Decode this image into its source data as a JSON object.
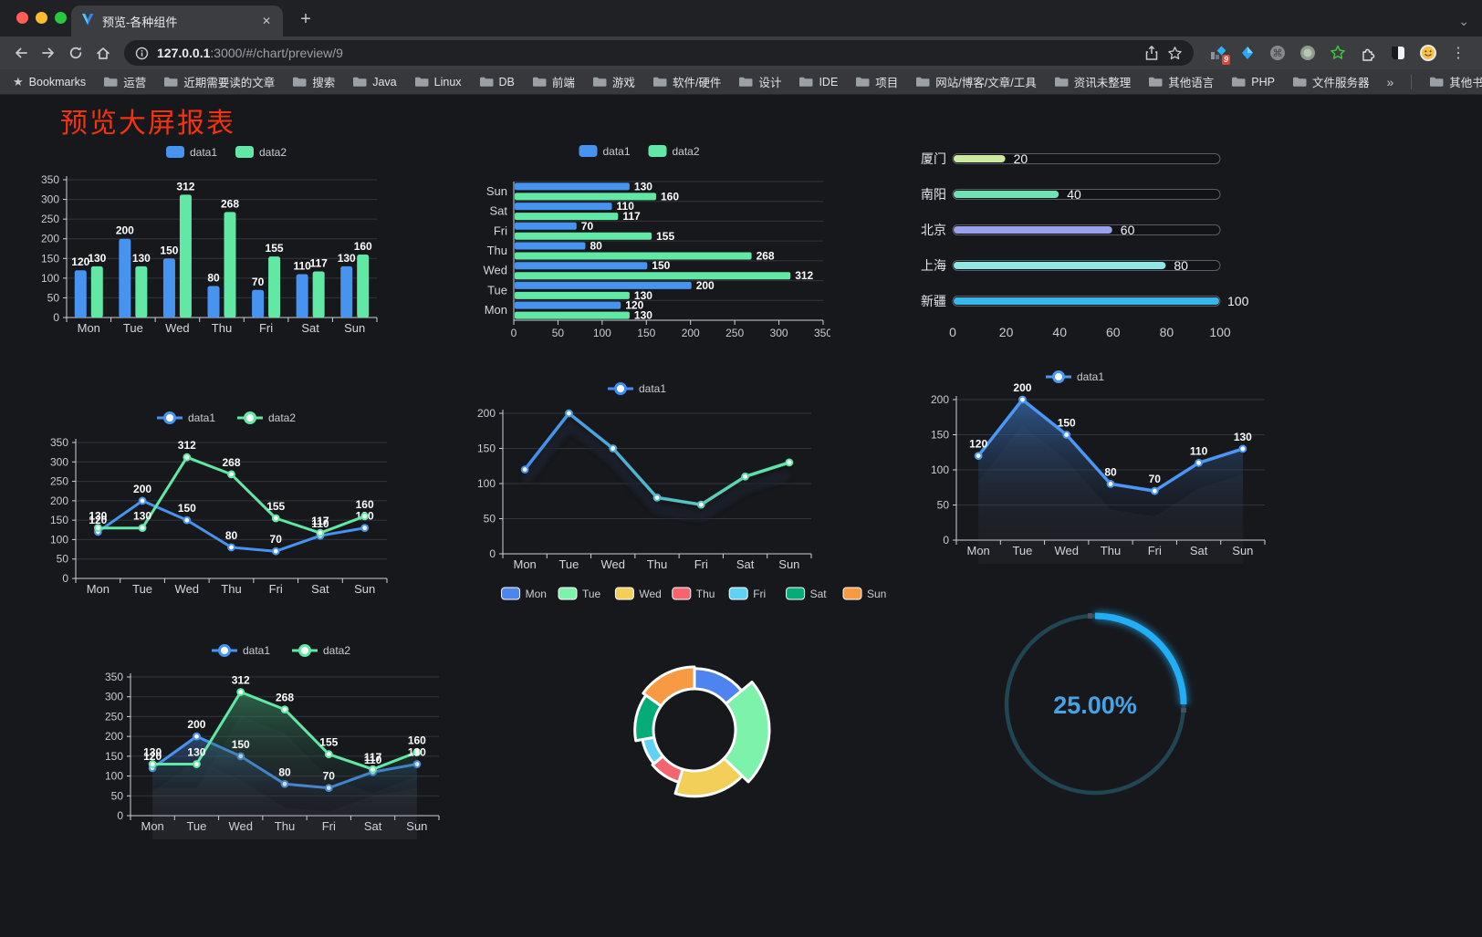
{
  "browser": {
    "tab_title": "预览-各种组件",
    "url_host": "127.0.0.1",
    "url_rest": ":3000/#/chart/preview/9",
    "ext_badge": "9",
    "bookmarks_label": "Bookmarks",
    "bookmarks": [
      "运营",
      "近期需要读的文章",
      "搜索",
      "Java",
      "Linux",
      "DB",
      "前端",
      "游戏",
      "软件/硬件",
      "设计",
      "IDE",
      "项目",
      "网站/博客/文章/工具",
      "资讯未整理",
      "其他语言",
      "PHP",
      "文件服务器"
    ],
    "other_bookmarks": "其他书签",
    "icons": {
      "close_glyph": "✕",
      "new_tab_glyph": "+",
      "chevron_glyph": "⌄",
      "overflow_glyph": "»",
      "menu_glyph": "⋮",
      "cmd_glyph": "⌘"
    }
  },
  "page": {
    "title": "预览大屏报表"
  },
  "palette": {
    "blue": "#4793f0",
    "green": "#62e8a5",
    "title_red": "#f3330f",
    "gauge_blue": "#21aef5",
    "gauge_track": "#1f4652",
    "gauge_text": "#46a3e8"
  },
  "chart_data": [
    {
      "id": "grouped-bar",
      "type": "bar",
      "categories": [
        "Mon",
        "Tue",
        "Wed",
        "Thu",
        "Fri",
        "Sat",
        "Sun"
      ],
      "series": [
        {
          "name": "data1",
          "color": "#4793f0",
          "values": [
            120,
            200,
            150,
            80,
            70,
            110,
            130
          ]
        },
        {
          "name": "data2",
          "color": "#62e8a5",
          "values": [
            130,
            130,
            312,
            268,
            155,
            117,
            160
          ]
        }
      ],
      "ylim": [
        0,
        350
      ],
      "ytick_step": 50,
      "legend_position": "top",
      "grid": true
    },
    {
      "id": "horizontal-bar",
      "type": "hbar",
      "categories": [
        "Mon",
        "Tue",
        "Wed",
        "Thu",
        "Fri",
        "Sat",
        "Sun"
      ],
      "series": [
        {
          "name": "data1",
          "color": "#4793f0",
          "values": [
            120,
            200,
            150,
            80,
            70,
            110,
            130
          ]
        },
        {
          "name": "data2",
          "color": "#62e8a5",
          "values": [
            130,
            130,
            312,
            268,
            155,
            117,
            160
          ]
        }
      ],
      "xlim": [
        0,
        350
      ],
      "xtick_step": 50,
      "legend_position": "top",
      "grid": true
    },
    {
      "id": "progress-bars",
      "type": "progress",
      "max": 100,
      "ticks": [
        0,
        20,
        40,
        60,
        80,
        100
      ],
      "items": [
        {
          "label": "厦门",
          "value": 20,
          "color": "#cdeaa1"
        },
        {
          "label": "南阳",
          "value": 40,
          "color": "#6ce3b3"
        },
        {
          "label": "北京",
          "value": 60,
          "color": "#98a2ec"
        },
        {
          "label": "上海",
          "value": 80,
          "color": "#8fe7e3"
        },
        {
          "label": "新疆",
          "value": 100,
          "color": "#38b6ea"
        }
      ]
    },
    {
      "id": "line-two-series",
      "type": "line",
      "categories": [
        "Mon",
        "Tue",
        "Wed",
        "Thu",
        "Fri",
        "Sat",
        "Sun"
      ],
      "series": [
        {
          "name": "data1",
          "color": "#4793f0",
          "values": [
            120,
            200,
            150,
            80,
            70,
            110,
            130
          ]
        },
        {
          "name": "data2",
          "color": "#62e8a5",
          "values": [
            130,
            130,
            312,
            268,
            155,
            117,
            160
          ]
        }
      ],
      "ylim": [
        0,
        350
      ],
      "ytick_step": 50,
      "legend_position": "top",
      "labels": true
    },
    {
      "id": "gradient-line",
      "type": "line-gradient",
      "categories": [
        "Mon",
        "Tue",
        "Wed",
        "Thu",
        "Fri",
        "Sat",
        "Sun"
      ],
      "series": [
        {
          "name": "data1",
          "gradient": [
            "#3f8df2",
            "#5fe8a2"
          ],
          "values": [
            120,
            200,
            150,
            80,
            70,
            110,
            130
          ]
        }
      ],
      "ylim": [
        0,
        200
      ],
      "ytick_step": 50,
      "legend_position": "top",
      "labels": false
    },
    {
      "id": "blue-area",
      "type": "area",
      "categories": [
        "Mon",
        "Tue",
        "Wed",
        "Thu",
        "Fri",
        "Sat",
        "Sun"
      ],
      "series": [
        {
          "name": "data1",
          "color": "#4a97f5",
          "values": [
            120,
            200,
            150,
            80,
            70,
            110,
            130
          ]
        }
      ],
      "ylim": [
        0,
        200
      ],
      "ytick_step": 50,
      "legend_position": "top",
      "labels": true
    },
    {
      "id": "line-area-two-series",
      "type": "line-area",
      "categories": [
        "Mon",
        "Tue",
        "Wed",
        "Thu",
        "Fri",
        "Sat",
        "Sun"
      ],
      "series": [
        {
          "name": "data1",
          "color": "#4793f0",
          "area": "#3f78c0",
          "values": [
            120,
            200,
            150,
            80,
            70,
            110,
            130
          ]
        },
        {
          "name": "data2",
          "color": "#62e8a5",
          "area": "#3da06e",
          "values": [
            130,
            130,
            312,
            268,
            155,
            117,
            160
          ]
        }
      ],
      "ylim": [
        0,
        350
      ],
      "ytick_step": 50,
      "legend_position": "top",
      "labels": true
    },
    {
      "id": "rose-pie",
      "type": "rose",
      "items": [
        {
          "label": "Mon",
          "value": 120,
          "color": "#4e84f0"
        },
        {
          "label": "Tue",
          "value": 200,
          "color": "#7df2ab"
        },
        {
          "label": "Wed",
          "value": 150,
          "color": "#f2cf58"
        },
        {
          "label": "Thu",
          "value": 80,
          "color": "#f5646f"
        },
        {
          "label": "Fri",
          "value": 70,
          "color": "#5fd2f5"
        },
        {
          "label": "Sat",
          "value": 110,
          "color": "#06ac78"
        },
        {
          "label": "Sun",
          "value": 130,
          "color": "#f79a43"
        }
      ],
      "legend_position": "top"
    },
    {
      "id": "ring-progress",
      "type": "ring",
      "percent": 25,
      "value_label": "25.00%"
    }
  ]
}
